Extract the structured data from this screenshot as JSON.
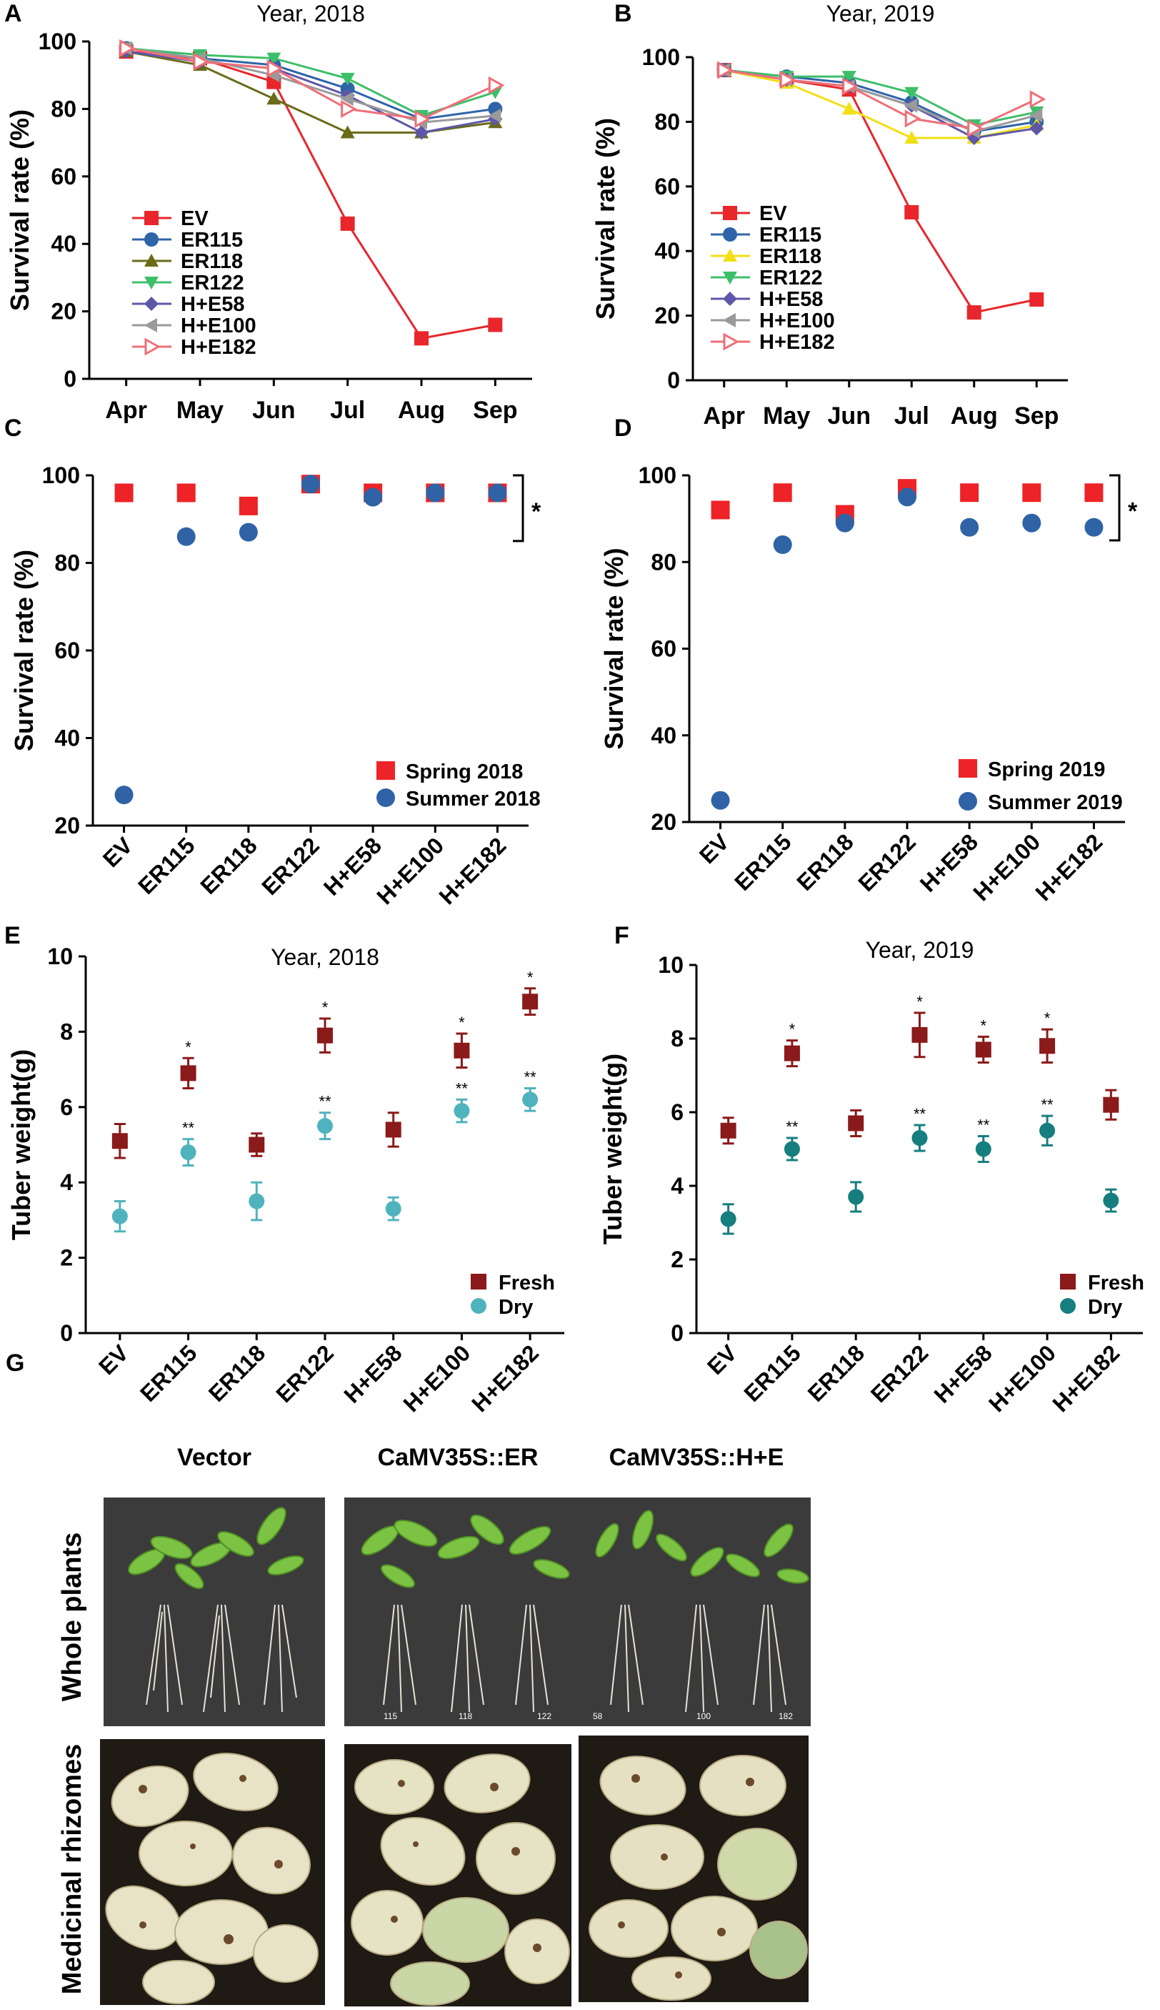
{
  "colors": {
    "EV": "#e8262b",
    "ER115": "#2e64a8",
    "ER118": "#6b6b18",
    "ER118_2019": "#f2df14",
    "ER122": "#3dbf6a",
    "H+E58": "#5e57a8",
    "H+E100": "#9a9a9a",
    "H+E182": "#ef6f78",
    "spring": "#ee2327",
    "summer": "#2f63a6",
    "fresh": "#8b1a1a",
    "dry2018": "#4fb3bd",
    "dry2019": "#167e7e"
  },
  "chart_data": [
    {
      "id": "A",
      "type": "line",
      "title": "Year, 2018",
      "ylabel": "Survival rate (%)",
      "categories": [
        "Apr",
        "May",
        "Jun",
        "Jul",
        "Aug",
        "Sep"
      ],
      "ylim": [
        0,
        100
      ],
      "yticks": [
        0,
        20,
        40,
        60,
        80,
        100
      ],
      "series": [
        {
          "name": "EV",
          "marker": "square",
          "values": [
            97,
            95,
            88,
            46,
            12,
            16
          ]
        },
        {
          "name": "ER115",
          "marker": "circle",
          "values": [
            98,
            95,
            93,
            86,
            77,
            80
          ]
        },
        {
          "name": "ER118",
          "marker": "triangle-up",
          "values": [
            97,
            93,
            83,
            73,
            73,
            76
          ]
        },
        {
          "name": "ER122",
          "marker": "triangle-down",
          "values": [
            98,
            96,
            95,
            89,
            78,
            85
          ]
        },
        {
          "name": "H+E58",
          "marker": "diamond",
          "values": [
            97,
            94,
            92,
            84,
            73,
            77
          ]
        },
        {
          "name": "H+E100",
          "marker": "triangle-left",
          "values": [
            98,
            95,
            90,
            83,
            76,
            78
          ]
        },
        {
          "name": "H+E182",
          "marker": "triangle-right-open",
          "values": [
            98,
            94,
            92,
            80,
            77,
            87
          ]
        }
      ]
    },
    {
      "id": "B",
      "type": "line",
      "title": "Year, 2019",
      "ylabel": "Survival rate (%)",
      "categories": [
        "Apr",
        "May",
        "Jun",
        "Jul",
        "Aug",
        "Sep"
      ],
      "ylim": [
        0,
        100
      ],
      "yticks": [
        0,
        20,
        40,
        60,
        80,
        100
      ],
      "series": [
        {
          "name": "EV",
          "marker": "square",
          "values": [
            96,
            93,
            90,
            52,
            21,
            25
          ]
        },
        {
          "name": "ER115",
          "marker": "circle",
          "values": [
            96,
            94,
            92,
            86,
            77,
            80
          ]
        },
        {
          "name": "ER118",
          "marker": "triangle-up",
          "values": [
            96,
            92,
            84,
            75,
            75,
            79
          ]
        },
        {
          "name": "ER122",
          "marker": "triangle-down",
          "values": [
            96,
            94,
            94,
            89,
            79,
            83
          ]
        },
        {
          "name": "H+E58",
          "marker": "diamond",
          "values": [
            96,
            93,
            91,
            85,
            75,
            78
          ]
        },
        {
          "name": "H+E100",
          "marker": "triangle-left",
          "values": [
            96,
            93,
            91,
            85,
            77,
            82
          ]
        },
        {
          "name": "H+E182",
          "marker": "triangle-right-open",
          "values": [
            96,
            93,
            91,
            81,
            78,
            87
          ]
        }
      ]
    },
    {
      "id": "C",
      "type": "scatter",
      "ylabel": "Survival rate (%)",
      "categories": [
        "EV",
        "ER115",
        "ER118",
        "ER122",
        "H+E58",
        "H+E100",
        "H+E182"
      ],
      "ylim": [
        20,
        100
      ],
      "yticks": [
        20,
        40,
        60,
        80,
        100
      ],
      "series": [
        {
          "name": "Spring 2018",
          "marker": "square",
          "values": [
            96,
            96,
            93,
            98,
            96,
            96,
            96
          ]
        },
        {
          "name": "Summer 2018",
          "marker": "circle",
          "values": [
            27,
            86,
            87,
            98,
            95,
            96,
            96
          ]
        }
      ],
      "annotation": "*"
    },
    {
      "id": "D",
      "type": "scatter",
      "ylabel": "Survival rate (%)",
      "categories": [
        "EV",
        "ER115",
        "ER118",
        "ER122",
        "H+E58",
        "H+E100",
        "H+E182"
      ],
      "ylim": [
        20,
        100
      ],
      "yticks": [
        20,
        40,
        60,
        80,
        100
      ],
      "series": [
        {
          "name": "Spring 2019",
          "marker": "square",
          "values": [
            92,
            96,
            91,
            97,
            96,
            96,
            96
          ]
        },
        {
          "name": "Summer 2019",
          "marker": "circle",
          "values": [
            25,
            84,
            89,
            95,
            88,
            89,
            88
          ]
        }
      ],
      "annotation": "*"
    },
    {
      "id": "E",
      "type": "scatter",
      "title": "Year, 2018",
      "ylabel": "Tuber weight(g)",
      "categories": [
        "EV",
        "ER115",
        "ER118",
        "ER122",
        "H+E58",
        "H+E100",
        "H+E182"
      ],
      "ylim": [
        0,
        10
      ],
      "yticks": [
        0,
        2,
        4,
        6,
        8,
        10
      ],
      "series": [
        {
          "name": "Fresh",
          "marker": "square",
          "values": [
            5.1,
            6.9,
            5.0,
            7.9,
            5.4,
            7.5,
            8.8
          ],
          "errors": [
            0.45,
            0.4,
            0.3,
            0.45,
            0.45,
            0.45,
            0.35
          ],
          "sig": [
            "",
            "*",
            "",
            "*",
            "",
            "*",
            "*"
          ]
        },
        {
          "name": "Dry",
          "marker": "circle",
          "values": [
            3.1,
            4.8,
            3.5,
            5.5,
            3.3,
            5.9,
            6.2
          ],
          "errors": [
            0.4,
            0.35,
            0.5,
            0.35,
            0.3,
            0.3,
            0.3
          ],
          "sig": [
            "",
            "**",
            "",
            "**",
            "",
            "**",
            "**"
          ]
        }
      ]
    },
    {
      "id": "F",
      "type": "scatter",
      "title": "Year, 2019",
      "ylabel": "Tuber weight(g)",
      "categories": [
        "EV",
        "ER115",
        "ER118",
        "ER122",
        "H+E58",
        "H+E100",
        "H+E182"
      ],
      "ylim": [
        0,
        10
      ],
      "yticks": [
        0,
        2,
        4,
        6,
        8,
        10
      ],
      "series": [
        {
          "name": "Fresh",
          "marker": "square",
          "values": [
            5.5,
            7.6,
            5.7,
            8.1,
            7.7,
            7.8,
            6.2
          ],
          "errors": [
            0.35,
            0.35,
            0.35,
            0.6,
            0.35,
            0.45,
            0.4
          ],
          "sig": [
            "",
            "*",
            "",
            "*",
            "*",
            "*",
            ""
          ]
        },
        {
          "name": "Dry",
          "marker": "circle",
          "values": [
            3.1,
            5.0,
            3.7,
            5.3,
            5.0,
            5.5,
            3.6
          ],
          "errors": [
            0.4,
            0.3,
            0.4,
            0.35,
            0.35,
            0.4,
            0.3
          ],
          "sig": [
            "",
            "**",
            "",
            "**",
            "**",
            "**",
            ""
          ]
        }
      ]
    }
  ],
  "panel_G": {
    "letter": "G",
    "columns": [
      "Vector",
      "CaMV35S::ER",
      "CaMV35S::H+E"
    ],
    "rows": [
      "Whole plants",
      "Medicinal rhizomes"
    ],
    "plant_labels": {
      "ER": [
        "115",
        "118",
        "122"
      ],
      "HE": [
        "58",
        "100",
        "182"
      ]
    }
  }
}
